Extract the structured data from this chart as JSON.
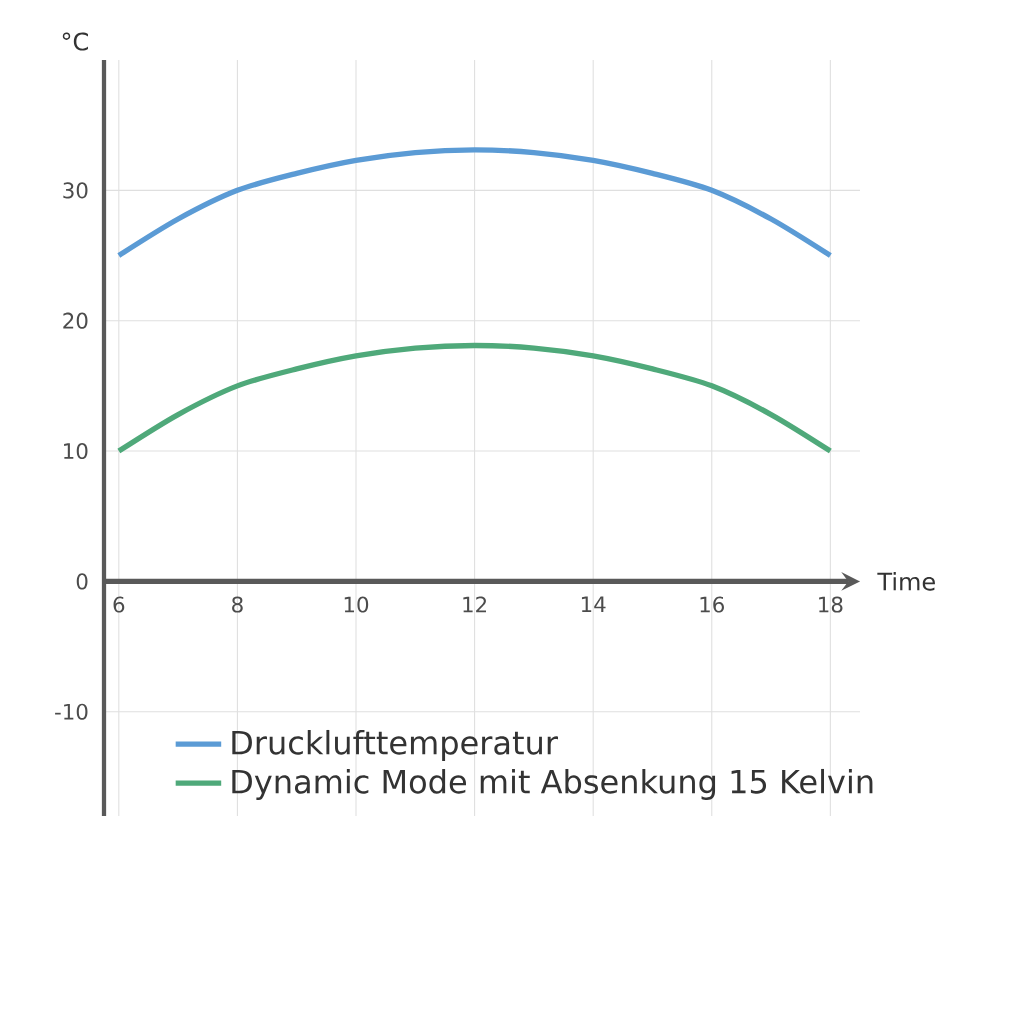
{
  "chart_data": {
    "type": "line",
    "xlabel": "Time",
    "ylabel": "°C",
    "x": [
      6,
      7,
      8,
      9,
      10,
      11,
      12,
      13,
      14,
      15,
      16,
      17,
      18
    ],
    "series": [
      {
        "name": "Drucklufttemperatur",
        "color": "#5b9bd5",
        "values": [
          25,
          27.8,
          30,
          31.3,
          32.3,
          32.9,
          33.1,
          32.9,
          32.3,
          31.3,
          30,
          27.8,
          25
        ]
      },
      {
        "name": "Dynamic Mode mit Absenkung 15 Kelvin",
        "color": "#4fa97a",
        "values": [
          10,
          12.8,
          15,
          16.3,
          17.3,
          17.9,
          18.1,
          17.9,
          17.3,
          16.3,
          15,
          12.8,
          10
        ]
      }
    ],
    "xlim": [
      5.75,
      18.5
    ],
    "ylim": [
      -18,
      40
    ],
    "xticks": [
      6,
      8,
      10,
      12,
      14,
      16,
      18
    ],
    "yticks": [
      -10,
      0,
      10,
      20,
      30
    ],
    "grid": true,
    "legend": "bottom",
    "marker": "none",
    "line_style": "solid"
  }
}
